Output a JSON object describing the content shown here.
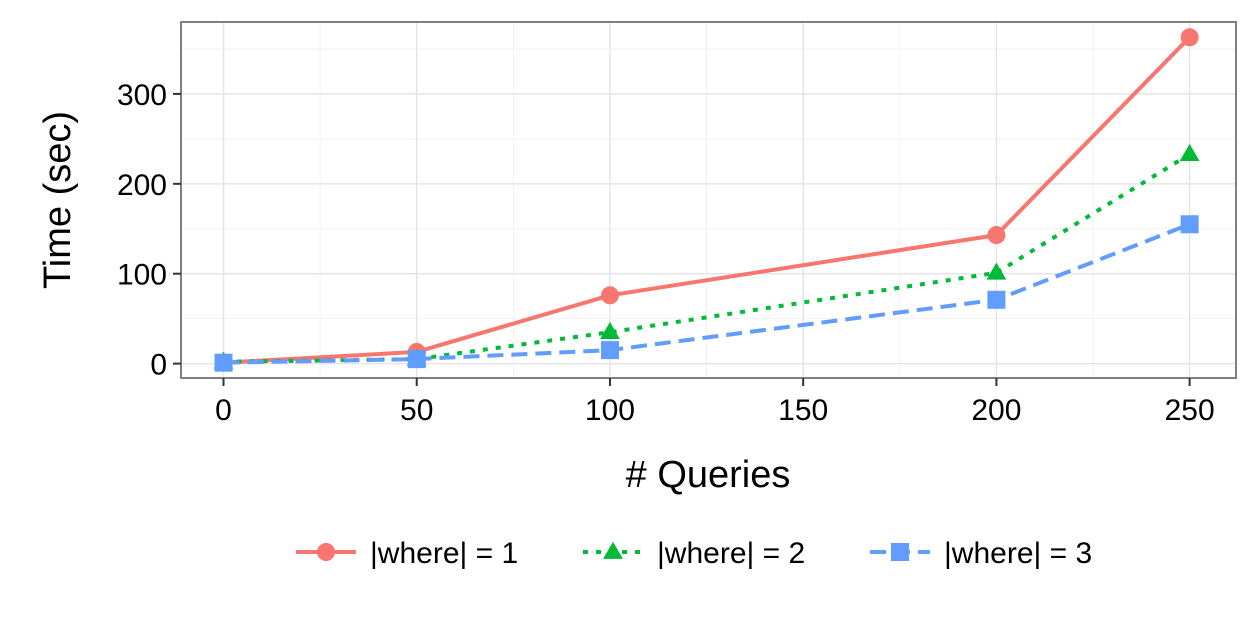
{
  "chart_data": {
    "type": "line",
    "title": "",
    "xlabel": "# Queries",
    "ylabel": "Time (sec)",
    "x": [
      0,
      50,
      100,
      200,
      250
    ],
    "xlim": [
      -11,
      262
    ],
    "ylim": [
      -16,
      380
    ],
    "xticks": [
      0,
      50,
      100,
      150,
      200,
      250
    ],
    "yticks": [
      0,
      100,
      200,
      300
    ],
    "grid": true,
    "legend_position": "bottom",
    "series": [
      {
        "name": "|where| = 1",
        "values": [
          1,
          13,
          76,
          143,
          363
        ],
        "color": "#F8766D",
        "marker": "circle",
        "linestyle": "solid"
      },
      {
        "name": "|where| = 2",
        "values": [
          2,
          5,
          35,
          101,
          233
        ],
        "color": "#00BA38",
        "marker": "triangle",
        "linestyle": "dotted"
      },
      {
        "name": "|where| = 3",
        "values": [
          1,
          5,
          15,
          71,
          155
        ],
        "color": "#619CFF",
        "marker": "square",
        "linestyle": "dashed"
      }
    ]
  }
}
